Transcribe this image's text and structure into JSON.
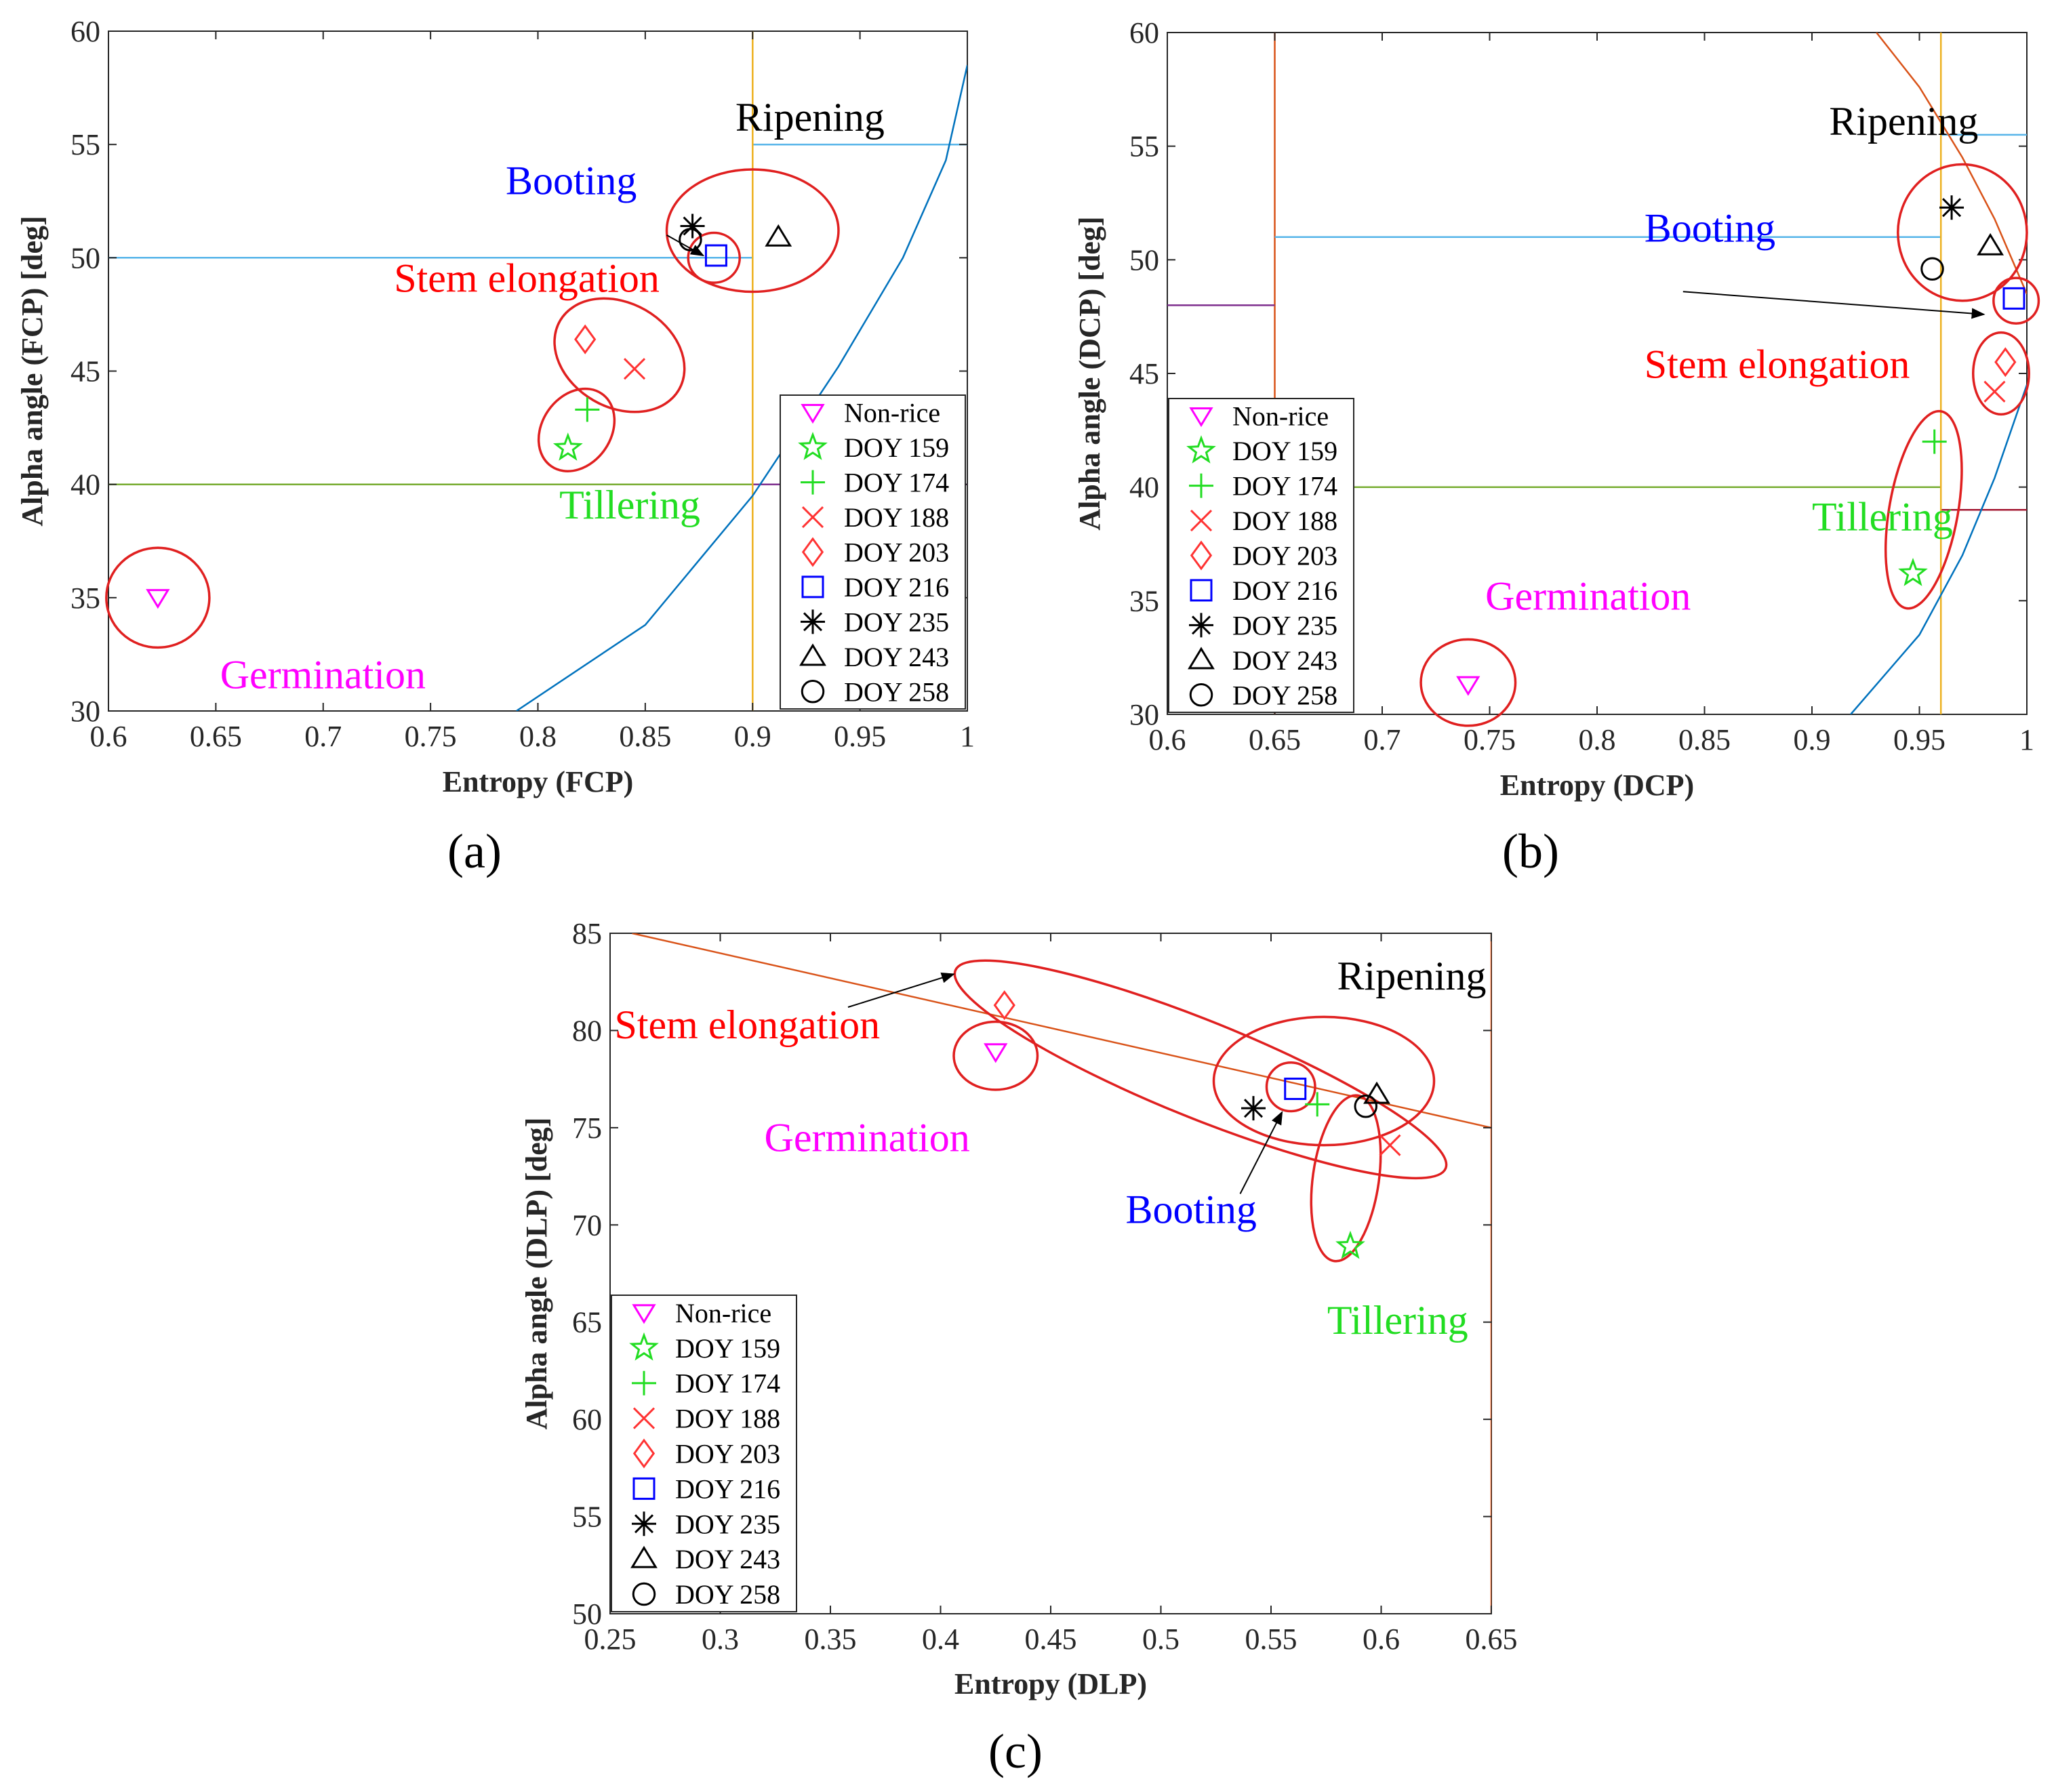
{
  "chart_data": [
    {
      "id": "a",
      "type": "scatter",
      "panel_label": "(a)",
      "xlabel": "Entropy (FCP)",
      "ylabel": "Alpha angle (FCP) [deg]",
      "xlim": [
        0.6,
        1.0
      ],
      "ylim": [
        30,
        60
      ],
      "xticks": [
        0.6,
        0.65,
        0.7,
        0.75,
        0.8,
        0.85,
        0.9,
        0.95,
        1
      ],
      "xtick_labels": [
        "0.6",
        "0.65",
        "0.7",
        "0.75",
        "0.8",
        "0.85",
        "0.9",
        "0.95",
        "1"
      ],
      "yticks": [
        30,
        35,
        40,
        45,
        50,
        55,
        60
      ],
      "ytick_labels": [
        "30",
        "35",
        "40",
        "45",
        "50",
        "55",
        "60"
      ],
      "legend_position": "bottom-right",
      "points": [
        {
          "series": "Non-rice",
          "x": 0.623,
          "y": 35.0
        },
        {
          "series": "DOY 159",
          "x": 0.814,
          "y": 41.6
        },
        {
          "series": "DOY 174",
          "x": 0.823,
          "y": 43.3
        },
        {
          "series": "DOY 188",
          "x": 0.845,
          "y": 45.1
        },
        {
          "series": "DOY 203",
          "x": 0.822,
          "y": 46.4
        },
        {
          "series": "DOY 216",
          "x": 0.883,
          "y": 50.1
        },
        {
          "series": "DOY 235",
          "x": 0.872,
          "y": 51.4
        },
        {
          "series": "DOY 243",
          "x": 0.912,
          "y": 50.9
        },
        {
          "series": "DOY 258",
          "x": 0.871,
          "y": 50.8
        }
      ],
      "lines": [
        {
          "color": "#56B4E9",
          "points": [
            [
              0.6,
              50
            ],
            [
              0.9,
              50
            ]
          ]
        },
        {
          "color": "#56B4E9",
          "points": [
            [
              0.9,
              55
            ],
            [
              1.0,
              55
            ]
          ]
        },
        {
          "color": "#77AC30",
          "points": [
            [
              0.6,
              40
            ],
            [
              0.9,
              40
            ]
          ]
        },
        {
          "color": "#7E2F8E",
          "points": [
            [
              0.9,
              40
            ],
            [
              1.0,
              40
            ]
          ]
        },
        {
          "color": "#EDB120",
          "points": [
            [
              0.9,
              30
            ],
            [
              0.9,
              60
            ]
          ]
        },
        {
          "color": "#0072BD",
          "points": [
            [
              0.79,
              30
            ],
            [
              0.85,
              33.8
            ],
            [
              0.9,
              39.5
            ],
            [
              0.94,
              45.2
            ],
            [
              0.97,
              50
            ],
            [
              0.99,
              54.3
            ],
            [
              1.0,
              58.5
            ]
          ]
        }
      ],
      "ellipses": [
        {
          "cx": 0.623,
          "cy": 35.0,
          "rx": 0.024,
          "ry": 2.2,
          "angle": 0
        },
        {
          "cx": 0.818,
          "cy": 42.4,
          "rx": 0.016,
          "ry": 1.95,
          "angle": 35
        },
        {
          "cx": 0.838,
          "cy": 45.7,
          "rx": 0.032,
          "ry": 2.3,
          "angle": 30
        },
        {
          "cx": 0.882,
          "cy": 50.0,
          "rx": 0.012,
          "ry": 1.1,
          "angle": 0
        },
        {
          "cx": 0.9,
          "cy": 51.2,
          "rx": 0.04,
          "ry": 2.7,
          "angle": 0
        }
      ],
      "arrows": [
        {
          "from": [
            0.86,
            51.0
          ],
          "to": [
            0.877,
            50.1
          ]
        }
      ],
      "annotations": [
        {
          "text": "Ripening",
          "x": 0.892,
          "y": 55.6,
          "color": "#000000"
        },
        {
          "text": "Booting",
          "x": 0.785,
          "y": 52.8,
          "color": "#0000FF"
        },
        {
          "text": "Stem elongation",
          "x": 0.733,
          "y": 48.5,
          "color": "#FF0000"
        },
        {
          "text": "Tillering",
          "x": 0.81,
          "y": 38.5,
          "color": "#22DD22"
        },
        {
          "text": "Germination",
          "x": 0.652,
          "y": 31.0,
          "color": "#FF00FF"
        }
      ]
    },
    {
      "id": "b",
      "type": "scatter",
      "panel_label": "(b)",
      "xlabel": "Entropy (DCP)",
      "ylabel": "Alpha angle (DCP) [deg]",
      "xlim": [
        0.6,
        1.0
      ],
      "ylim": [
        30,
        60
      ],
      "xticks": [
        0.6,
        0.65,
        0.7,
        0.75,
        0.8,
        0.85,
        0.9,
        0.95,
        1
      ],
      "xtick_labels": [
        "0.6",
        "0.65",
        "0.7",
        "0.75",
        "0.8",
        "0.85",
        "0.9",
        "0.95",
        "1"
      ],
      "yticks": [
        30,
        35,
        40,
        45,
        50,
        55,
        60
      ],
      "ytick_labels": [
        "30",
        "35",
        "40",
        "45",
        "50",
        "55",
        "60"
      ],
      "legend_position": "bottom-left",
      "points": [
        {
          "series": "Non-rice",
          "x": 0.74,
          "y": 31.3
        },
        {
          "series": "DOY 159",
          "x": 0.947,
          "y": 36.2
        },
        {
          "series": "DOY 174",
          "x": 0.957,
          "y": 42.0
        },
        {
          "series": "DOY 188",
          "x": 0.985,
          "y": 44.2
        },
        {
          "series": "DOY 203",
          "x": 0.99,
          "y": 45.5
        },
        {
          "series": "DOY 216",
          "x": 0.994,
          "y": 48.3
        },
        {
          "series": "DOY 235",
          "x": 0.965,
          "y": 52.3
        },
        {
          "series": "DOY 243",
          "x": 0.983,
          "y": 50.6
        },
        {
          "series": "DOY 258",
          "x": 0.956,
          "y": 49.6
        }
      ],
      "lines": [
        {
          "color": "#D95319",
          "points": [
            [
              0.65,
              30
            ],
            [
              0.65,
              60
            ]
          ]
        },
        {
          "color": "#7E2F8E",
          "points": [
            [
              0.6,
              48
            ],
            [
              0.65,
              48
            ]
          ]
        },
        {
          "color": "#56B4E9",
          "points": [
            [
              0.65,
              51
            ],
            [
              0.96,
              51
            ]
          ]
        },
        {
          "color": "#56B4E9",
          "points": [
            [
              0.96,
              55.5
            ],
            [
              1.0,
              55.5
            ]
          ]
        },
        {
          "color": "#77AC30",
          "points": [
            [
              0.65,
              40
            ],
            [
              0.96,
              40
            ]
          ]
        },
        {
          "color": "#A2142F",
          "points": [
            [
              0.96,
              39
            ],
            [
              1.0,
              39
            ]
          ]
        },
        {
          "color": "#EDB120",
          "points": [
            [
              0.96,
              30
            ],
            [
              0.96,
              60
            ]
          ]
        },
        {
          "color": "#D95319",
          "points": [
            [
              0.93,
              60
            ],
            [
              0.95,
              57.6
            ],
            [
              0.97,
              54.5
            ],
            [
              0.985,
              51.8
            ],
            [
              1.0,
              48.5
            ]
          ]
        },
        {
          "color": "#0072BD",
          "points": [
            [
              0.918,
              30
            ],
            [
              0.95,
              33.5
            ],
            [
              0.97,
              37.0
            ],
            [
              0.985,
              40.4
            ],
            [
              1.0,
              44.5
            ]
          ]
        }
      ],
      "ellipses": [
        {
          "cx": 0.74,
          "cy": 31.4,
          "rx": 0.022,
          "ry": 1.9,
          "angle": 0
        },
        {
          "cx": 0.952,
          "cy": 39.0,
          "rx": 0.016,
          "ry": 4.4,
          "angle": 10
        },
        {
          "cx": 0.988,
          "cy": 45.0,
          "rx": 0.013,
          "ry": 1.8,
          "angle": 0
        },
        {
          "cx": 0.995,
          "cy": 48.2,
          "rx": 0.0105,
          "ry": 1.0,
          "angle": 0
        },
        {
          "cx": 0.97,
          "cy": 51.2,
          "rx": 0.03,
          "ry": 3.0,
          "angle": 0
        }
      ],
      "arrows": [
        {
          "from": [
            0.84,
            48.6
          ],
          "to": [
            0.98,
            47.6
          ]
        }
      ],
      "annotations": [
        {
          "text": "Ripening",
          "x": 0.908,
          "y": 55.5,
          "color": "#000000"
        },
        {
          "text": "Booting",
          "x": 0.822,
          "y": 50.8,
          "color": "#0000FF"
        },
        {
          "text": "Stem elongation",
          "x": 0.822,
          "y": 44.8,
          "color": "#FF0000"
        },
        {
          "text": "Tillering",
          "x": 0.9,
          "y": 38.1,
          "color": "#22DD22"
        },
        {
          "text": "Germination",
          "x": 0.748,
          "y": 34.6,
          "color": "#FF00FF"
        }
      ]
    },
    {
      "id": "c",
      "type": "scatter",
      "panel_label": "(c)",
      "xlabel": "Entropy (DLP)",
      "ylabel": "Alpha angle (DLP) [deg]",
      "xlim": [
        0.25,
        0.65
      ],
      "ylim": [
        50,
        85
      ],
      "xticks": [
        0.25,
        0.3,
        0.35,
        0.4,
        0.45,
        0.5,
        0.55,
        0.6,
        0.65
      ],
      "xtick_labels": [
        "0.25",
        "0.3",
        "0.35",
        "0.4",
        "0.45",
        "0.5",
        "0.55",
        "0.6",
        "0.65"
      ],
      "yticks": [
        50,
        55,
        60,
        65,
        70,
        75,
        80,
        85
      ],
      "ytick_labels": [
        "50",
        "55",
        "60",
        "65",
        "70",
        "75",
        "80",
        "85"
      ],
      "legend_position": "bottom-left",
      "points": [
        {
          "series": "Non-rice",
          "x": 0.425,
          "y": 78.9
        },
        {
          "series": "DOY 159",
          "x": 0.586,
          "y": 68.9
        },
        {
          "series": "DOY 174",
          "x": 0.571,
          "y": 76.2
        },
        {
          "series": "DOY 188",
          "x": 0.604,
          "y": 74.1
        },
        {
          "series": "DOY 203",
          "x": 0.429,
          "y": 81.3
        },
        {
          "series": "DOY 216",
          "x": 0.561,
          "y": 77.0
        },
        {
          "series": "DOY 235",
          "x": 0.542,
          "y": 76.0
        },
        {
          "series": "DOY 243",
          "x": 0.598,
          "y": 76.7
        },
        {
          "series": "DOY 258",
          "x": 0.593,
          "y": 76.1
        }
      ],
      "lines": [
        {
          "color": "#D95319",
          "points": [
            [
              0.26,
              85.0
            ],
            [
              0.65,
              75.0
            ]
          ]
        },
        {
          "color": "#D95319",
          "points": [
            [
              0.65,
              50
            ],
            [
              0.65,
              85
            ]
          ]
        }
      ],
      "ellipses": [
        {
          "cx": 0.425,
          "cy": 78.7,
          "rx": 0.019,
          "ry": 1.75,
          "angle": 0
        },
        {
          "cx": 0.518,
          "cy": 78.0,
          "rx": 0.12,
          "ry": 2.5,
          "angle": 22
        },
        {
          "cx": 0.574,
          "cy": 77.4,
          "rx": 0.05,
          "ry": 3.3,
          "angle": 0
        },
        {
          "cx": 0.559,
          "cy": 77.1,
          "rx": 0.011,
          "ry": 1.25,
          "angle": 0
        },
        {
          "cx": 0.584,
          "cy": 72.4,
          "rx": 0.015,
          "ry": 4.3,
          "angle": 8
        }
      ],
      "arrows": [
        {
          "from": [
            0.358,
            81.2
          ],
          "to": [
            0.406,
            82.9
          ]
        },
        {
          "from": [
            0.536,
            71.6
          ],
          "to": [
            0.555,
            75.8
          ]
        }
      ],
      "annotations": [
        {
          "text": "Ripening",
          "x": 0.58,
          "y": 82.1,
          "color": "#000000"
        },
        {
          "text": "Stem elongation",
          "x": 0.252,
          "y": 79.6,
          "color": "#FF0000"
        },
        {
          "text": "Germination",
          "x": 0.32,
          "y": 73.8,
          "color": "#FF00FF"
        },
        {
          "text": "Booting",
          "x": 0.484,
          "y": 70.1,
          "color": "#0000FF"
        },
        {
          "text": "Tillering",
          "x": 0.5755,
          "y": 64.4,
          "color": "#22DD22"
        }
      ]
    }
  ],
  "legend": [
    {
      "label": "Non-rice",
      "marker": "triangle-down",
      "color": "#FF00FF"
    },
    {
      "label": "DOY 159",
      "marker": "star",
      "color": "#22DD22"
    },
    {
      "label": "DOY 174",
      "marker": "plus",
      "color": "#22DD22"
    },
    {
      "label": "DOY 188",
      "marker": "x",
      "color": "#FF3333"
    },
    {
      "label": "DOY 203",
      "marker": "diamond",
      "color": "#FF3333"
    },
    {
      "label": "DOY 216",
      "marker": "square",
      "color": "#0000FF"
    },
    {
      "label": "DOY 235",
      "marker": "asterisk",
      "color": "#000000"
    },
    {
      "label": "DOY 243",
      "marker": "triangle-up",
      "color": "#000000"
    },
    {
      "label": "DOY 258",
      "marker": "circle",
      "color": "#000000"
    }
  ],
  "colors": {
    "ellipse": "#E02020",
    "axis": "#262626"
  }
}
